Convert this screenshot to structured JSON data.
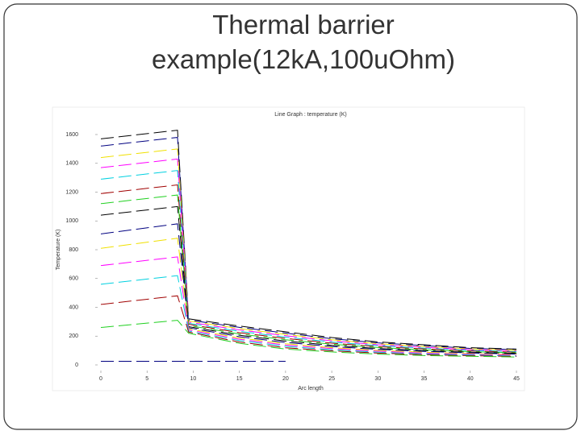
{
  "slide": {
    "title_lines": [
      "Thermal barrier",
      "example(12kA,100uOhm)"
    ]
  },
  "chart_data": {
    "type": "line",
    "title": "Line Graph : temperature (K)",
    "x_label": "Arc length",
    "y_label": "Temperature (K)",
    "x": [
      0,
      8.3,
      9.5,
      15,
      20,
      25,
      30,
      35,
      40,
      45
    ],
    "xlim": [
      0,
      45
    ],
    "xticks": [
      0,
      5,
      10,
      15,
      20,
      25,
      30,
      35,
      40,
      45
    ],
    "ylim": [
      0,
      1600
    ],
    "yticks": [
      0,
      200,
      400,
      600,
      800,
      1000,
      1200,
      1400,
      1600
    ],
    "series": [
      {
        "color": "#000000",
        "values": [
          1570,
          1630,
          320,
          270,
          230,
          190,
          160,
          140,
          120,
          110
        ]
      },
      {
        "color": "#000080",
        "values": [
          1520,
          1580,
          312,
          261,
          221,
          182,
          153,
          134,
          115,
          106
        ]
      },
      {
        "color": "#f0e000",
        "values": [
          1440,
          1500,
          305,
          252,
          212,
          175,
          147,
          128,
          111,
          102
        ]
      },
      {
        "color": "#ff00ff",
        "values": [
          1370,
          1430,
          297,
          243,
          203,
          167,
          140,
          123,
          106,
          97
        ]
      },
      {
        "color": "#00d0e0",
        "values": [
          1290,
          1350,
          289,
          233,
          193,
          159,
          134,
          117,
          101,
          93
        ]
      },
      {
        "color": "#a00000",
        "values": [
          1190,
          1250,
          282,
          224,
          184,
          151,
          127,
          111,
          97,
          88
        ]
      },
      {
        "color": "#20d020",
        "values": [
          1120,
          1180,
          274,
          215,
          175,
          144,
          121,
          105,
          92,
          84
        ]
      },
      {
        "color": "#000000",
        "values": [
          1040,
          1100,
          266,
          206,
          166,
          136,
          114,
          99,
          88,
          80
        ]
      },
      {
        "color": "#000080",
        "values": [
          910,
          980,
          258,
          196,
          156,
          128,
          108,
          94,
          83,
          75
        ]
      },
      {
        "color": "#f0e000",
        "values": [
          810,
          880,
          251,
          187,
          147,
          120,
          101,
          88,
          78,
          71
        ]
      },
      {
        "color": "#ff00ff",
        "values": [
          690,
          750,
          243,
          178,
          138,
          113,
          95,
          82,
          74,
          67
        ]
      },
      {
        "color": "#00d0e0",
        "values": [
          560,
          620,
          235,
          169,
          129,
          105,
          88,
          76,
          69,
          62
        ]
      },
      {
        "color": "#a00000",
        "values": [
          420,
          480,
          228,
          159,
          119,
          98,
          82,
          71,
          64,
          59
        ]
      },
      {
        "color": "#20d020",
        "values": [
          260,
          310,
          220,
          150,
          110,
          90,
          75,
          65,
          60,
          55
        ]
      },
      {
        "color": "#000080",
        "values": [
          25,
          25,
          25,
          25,
          25,
          null,
          null,
          null,
          null,
          null
        ]
      }
    ]
  }
}
